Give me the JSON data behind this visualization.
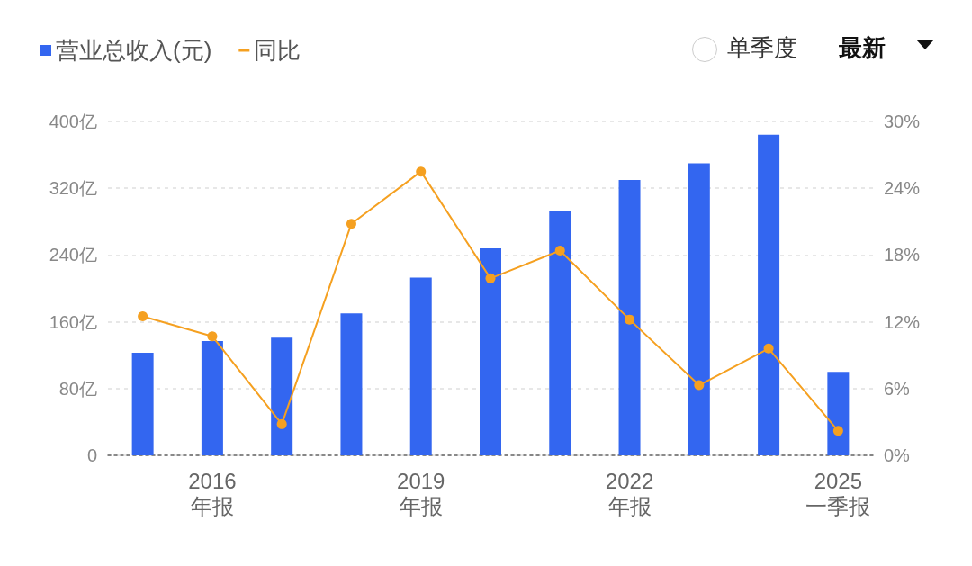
{
  "chart_data": {
    "type": "bar",
    "categories": [
      null,
      "2016\n年报",
      null,
      null,
      "2019\n年报",
      null,
      null,
      "2022\n年报",
      null,
      null,
      "2025\n一季报"
    ],
    "series": [
      {
        "name": "营业总收入(元)",
        "color": "#3366f0",
        "values": [
          123,
          137,
          141,
          170,
          213,
          248,
          293,
          330,
          350,
          384,
          100
        ]
      },
      {
        "name": "同比",
        "type": "line",
        "axis": "y2",
        "color": "#f5a020",
        "marker": "circle",
        "values": [
          12.5,
          10.7,
          2.8,
          20.8,
          25.5,
          15.9,
          18.4,
          12.2,
          6.3,
          9.6,
          2.2
        ]
      }
    ],
    "ylim": [
      0,
      400
    ],
    "yticks": [
      {
        "value": 0,
        "label": "0"
      },
      {
        "value": 80,
        "label": "80亿"
      },
      {
        "value": 160,
        "label": "160亿"
      },
      {
        "value": 240,
        "label": "240亿"
      },
      {
        "value": 320,
        "label": "320亿"
      },
      {
        "value": 400,
        "label": "400亿"
      }
    ],
    "y2lim": [
      0,
      30
    ],
    "y2ticks": [
      {
        "value": 0,
        "label": "0%"
      },
      {
        "value": 6,
        "label": "6%"
      },
      {
        "value": 12,
        "label": "12%"
      },
      {
        "value": 18,
        "label": "18%"
      },
      {
        "value": 24,
        "label": "24%"
      },
      {
        "value": 30,
        "label": "30%"
      }
    ],
    "grid": "y",
    "legend": "top left",
    "annotations": [
      "单季度",
      "最新"
    ]
  }
}
